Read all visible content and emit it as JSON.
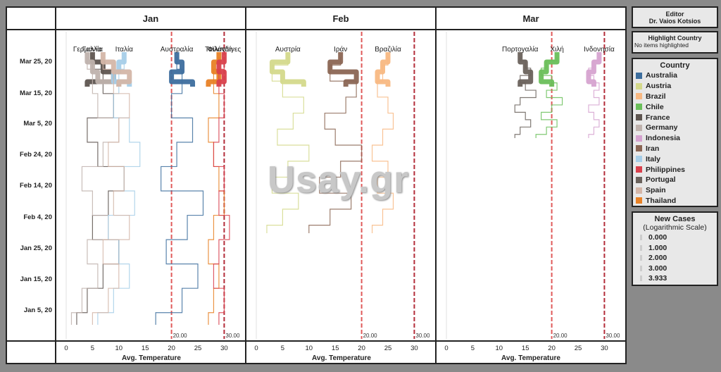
{
  "panels": [
    "Jan",
    "Feb",
    "Mar"
  ],
  "y_ticks": [
    "Mar 25, 20",
    "Mar 15, 20",
    "Mar 5, 20",
    "Feb 24, 20",
    "Feb 14, 20",
    "Feb 4, 20",
    "Jan 25, 20",
    "Jan 15, 20",
    "Jan 5, 20"
  ],
  "x_ticks": [
    "0",
    "5",
    "10",
    "15",
    "20",
    "25",
    "30"
  ],
  "x_axis_title": "Avg. Temperature",
  "ref_labels": [
    "20.00",
    "30.00"
  ],
  "editor": {
    "title": "Editor",
    "name": "Dr. Vaios Kotsios"
  },
  "highlight": {
    "title": "Highlight Country",
    "value": "No items highlighted"
  },
  "legend": {
    "title": "Country",
    "items": [
      {
        "name": "Australia",
        "color": "#3d6e9e"
      },
      {
        "name": "Austria",
        "color": "#d4d98b"
      },
      {
        "name": "Brazil",
        "color": "#f8b882"
      },
      {
        "name": "Chile",
        "color": "#6abf5a"
      },
      {
        "name": "France",
        "color": "#5e5550"
      },
      {
        "name": "Germany",
        "color": "#bfb2ad"
      },
      {
        "name": "Indonesia",
        "color": "#d6a3d0"
      },
      {
        "name": "Iran",
        "color": "#8b6654"
      },
      {
        "name": "Italy",
        "color": "#a6cee8"
      },
      {
        "name": "Philippines",
        "color": "#d9404c"
      },
      {
        "name": "Portugal",
        "color": "#6a625c"
      },
      {
        "name": "Spain",
        "color": "#d4b6a8"
      },
      {
        "name": "Thailand",
        "color": "#e88125"
      }
    ]
  },
  "size_legend": {
    "title": "New Cases",
    "subtitle": "(Logarithmic Scale)",
    "items": [
      "0.000",
      "1.000",
      "2.000",
      "3.000",
      "3.933"
    ]
  },
  "watermark": "Usay.gr",
  "chart_data": {
    "type": "line",
    "x_axis": "Avg. Temperature",
    "xlim": [
      0,
      32
    ],
    "ylim": [
      "Jan 1, 20",
      "Mar 31, 20"
    ],
    "reference_lines": [
      20,
      30
    ],
    "panels": [
      {
        "name": "Jan",
        "series": [
          {
            "name": "France",
            "label": "Γαλλία",
            "color": "#5e5550",
            "temp": [
              2,
              4,
              7,
              10,
              5,
              8,
              11,
              6,
              4,
              9,
              7,
              5
            ]
          },
          {
            "name": "Germany",
            "label": "Γερμανία",
            "color": "#bfb2ad",
            "temp": [
              1,
              3,
              6,
              4,
              8,
              5,
              3,
              7,
              10,
              6,
              5,
              4
            ]
          },
          {
            "name": "Italy",
            "label": "Ιταλία",
            "color": "#a6cee8",
            "temp": [
              6,
              9,
              12,
              10,
              8,
              13,
              11,
              14,
              12,
              9,
              10,
              11
            ]
          },
          {
            "name": "Spain",
            "color": "#d4b6a8",
            "temp": [
              5,
              8,
              10,
              7,
              12,
              9,
              11,
              8,
              10,
              12,
              9,
              7
            ]
          },
          {
            "name": "Australia",
            "label": "Αυστραλία",
            "color": "#3d6e9e",
            "temp": [
              17,
              22,
              25,
              19,
              23,
              26,
              18,
              21,
              24,
              20,
              22,
              21
            ]
          },
          {
            "name": "Thailand",
            "label": "Ταϊλάνδη",
            "color": "#e88125",
            "temp": [
              27,
              28,
              29,
              27,
              28,
              30,
              29,
              28,
              27,
              29,
              28,
              29
            ]
          },
          {
            "name": "Philippines",
            "label": "Φιλιππίνες",
            "color": "#d9404c",
            "temp": [
              29,
              30,
              28,
              29,
              31,
              29,
              30,
              28,
              29,
              30,
              29,
              30
            ]
          }
        ]
      },
      {
        "name": "Feb",
        "series": [
          {
            "name": "Austria",
            "label": "Αυστρία",
            "color": "#d4d98b",
            "temp": [
              2,
              5,
              8,
              3,
              6,
              10,
              4,
              7,
              9,
              5,
              3,
              6
            ]
          },
          {
            "name": "Iran",
            "label": "Ιράν",
            "color": "#8b6654",
            "temp": [
              10,
              14,
              18,
              12,
              16,
              20,
              15,
              13,
              17,
              19,
              14,
              16
            ]
          },
          {
            "name": "Brazil",
            "label": "Βραζιλία",
            "color": "#f8b882",
            "temp": [
              22,
              24,
              26,
              23,
              25,
              22,
              24,
              26,
              25,
              23,
              24,
              25
            ]
          }
        ]
      },
      {
        "name": "Mar",
        "series": [
          {
            "name": "Portugal",
            "label": "Πορτογαλία",
            "color": "#6a625c",
            "temp": [
              13,
              14,
              16,
              15,
              13,
              14,
              17,
              15,
              14,
              16,
              15,
              14
            ]
          },
          {
            "name": "Chile",
            "label": "Χιλή",
            "color": "#6abf5a",
            "temp": [
              17,
              19,
              21,
              18,
              20,
              22,
              19,
              21,
              20,
              18,
              19,
              21
            ]
          },
          {
            "name": "Indonesia",
            "label": "Ινδονησία",
            "color": "#d6a3d0",
            "temp": [
              27,
              28,
              29,
              28,
              27,
              29,
              28,
              29,
              28,
              27,
              28,
              29
            ]
          }
        ]
      }
    ]
  }
}
